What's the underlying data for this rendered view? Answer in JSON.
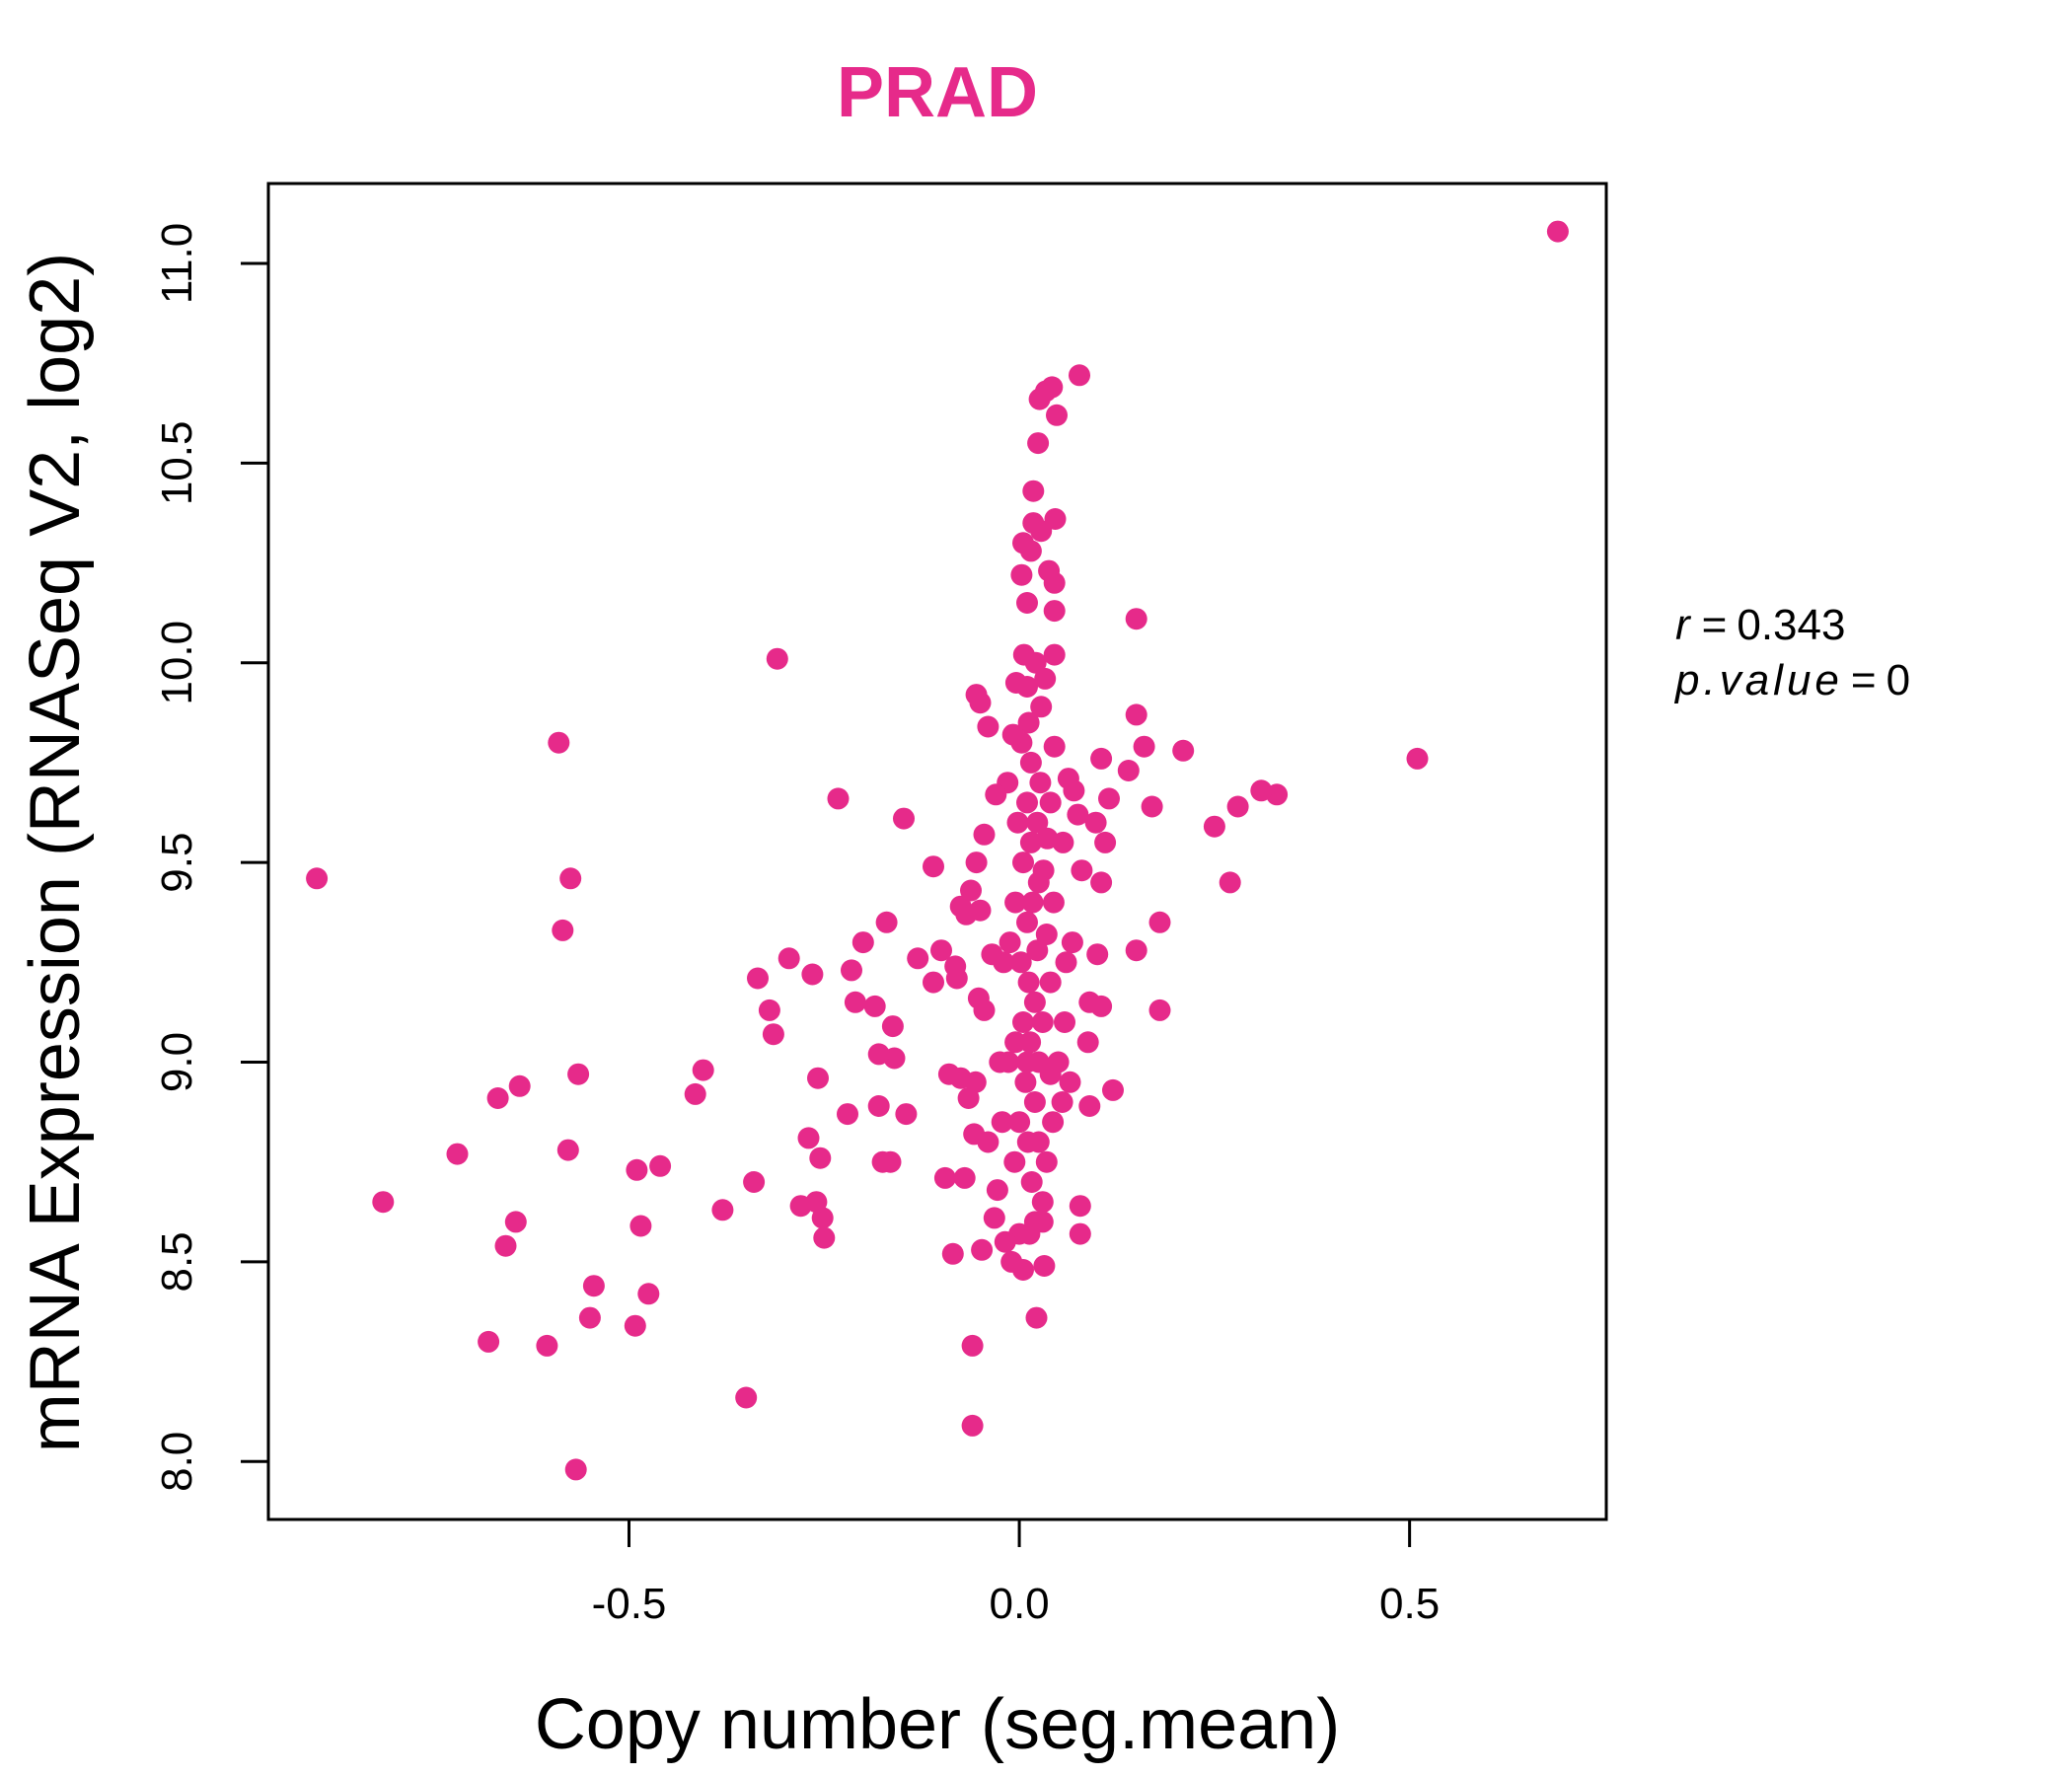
{
  "chart_data": {
    "type": "scatter",
    "title": "PRAD",
    "title_color": "#e62a8a",
    "point_color": "#e62a8a",
    "xlabel": "Copy number (seg.mean)",
    "ylabel": "mRNA Expression (RNASeq V2, log2)",
    "xlim": [
      -0.962,
      0.752
    ],
    "ylim": [
      7.855,
      11.2
    ],
    "x_ticks": [
      "-0.5",
      "0.0",
      "0.5"
    ],
    "x_tick_values": [
      -0.5,
      0.0,
      0.5
    ],
    "y_ticks": [
      "8.0",
      "8.5",
      "9.0",
      "9.5",
      "10.0",
      "10.5",
      "11.0"
    ],
    "y_tick_values": [
      8.0,
      8.5,
      9.0,
      9.5,
      10.0,
      10.5,
      11.0
    ],
    "grid": false,
    "stats": {
      "r_label": "r",
      "r_value": "0.343",
      "p_label": "p.value",
      "p_value": "0"
    },
    "points": [
      [
        0.69,
        11.08
      ],
      [
        0.51,
        9.76
      ],
      [
        0.33,
        9.67
      ],
      [
        0.31,
        9.68
      ],
      [
        0.28,
        9.64
      ],
      [
        0.27,
        9.45
      ],
      [
        0.25,
        9.59
      ],
      [
        0.21,
        9.78
      ],
      [
        0.18,
        9.13
      ],
      [
        0.18,
        9.35
      ],
      [
        0.17,
        9.64
      ],
      [
        0.16,
        9.79
      ],
      [
        0.15,
        10.11
      ],
      [
        0.15,
        9.87
      ],
      [
        0.15,
        9.28
      ],
      [
        0.14,
        9.73
      ],
      [
        0.12,
        8.93
      ],
      [
        0.115,
        9.66
      ],
      [
        0.11,
        9.55
      ],
      [
        0.105,
        9.76
      ],
      [
        0.105,
        9.45
      ],
      [
        0.105,
        9.14
      ],
      [
        0.1,
        9.27
      ],
      [
        0.098,
        9.6
      ],
      [
        0.09,
        9.15
      ],
      [
        0.09,
        8.89
      ],
      [
        0.088,
        9.05
      ],
      [
        0.08,
        9.48
      ],
      [
        0.078,
        8.64
      ],
      [
        0.078,
        8.57
      ],
      [
        0.077,
        10.72
      ],
      [
        0.075,
        9.62
      ],
      [
        0.07,
        9.68
      ],
      [
        0.068,
        9.3
      ],
      [
        0.065,
        8.95
      ],
      [
        0.063,
        9.71
      ],
      [
        0.06,
        9.25
      ],
      [
        0.058,
        9.1
      ],
      [
        0.056,
        9.55
      ],
      [
        0.055,
        8.9
      ],
      [
        0.05,
        9.0
      ],
      [
        0.048,
        10.62
      ],
      [
        0.046,
        10.36
      ],
      [
        0.045,
        10.02
      ],
      [
        0.045,
        10.13
      ],
      [
        0.045,
        10.2
      ],
      [
        0.045,
        9.79
      ],
      [
        0.044,
        9.4
      ],
      [
        0.043,
        8.85
      ],
      [
        0.042,
        10.69
      ],
      [
        0.04,
        9.65
      ],
      [
        0.04,
        9.2
      ],
      [
        0.04,
        8.97
      ],
      [
        0.038,
        10.23
      ],
      [
        0.036,
        9.56
      ],
      [
        0.035,
        9.32
      ],
      [
        0.035,
        8.75
      ],
      [
        0.034,
        10.68
      ],
      [
        0.033,
        9.96
      ],
      [
        0.032,
        8.49
      ],
      [
        0.031,
        9.48
      ],
      [
        0.03,
        9.1
      ],
      [
        0.03,
        8.65
      ],
      [
        0.03,
        8.6
      ],
      [
        0.028,
        10.33
      ],
      [
        0.028,
        9.89
      ],
      [
        0.027,
        9.7
      ],
      [
        0.026,
        10.66
      ],
      [
        0.025,
        9.45
      ],
      [
        0.025,
        9.0
      ],
      [
        0.025,
        8.8
      ],
      [
        0.024,
        10.55
      ],
      [
        0.023,
        9.6
      ],
      [
        0.023,
        9.28
      ],
      [
        0.022,
        8.36
      ],
      [
        0.021,
        10.0
      ],
      [
        0.02,
        9.15
      ],
      [
        0.02,
        8.9
      ],
      [
        0.02,
        8.6
      ],
      [
        0.018,
        10.43
      ],
      [
        0.018,
        10.35
      ],
      [
        0.017,
        9.4
      ],
      [
        0.016,
        8.7
      ],
      [
        0.015,
        10.28
      ],
      [
        0.015,
        9.75
      ],
      [
        0.015,
        9.55
      ],
      [
        0.014,
        9.05
      ],
      [
        0.013,
        8.57
      ],
      [
        0.012,
        9.85
      ],
      [
        0.012,
        9.2
      ],
      [
        0.011,
        8.8
      ],
      [
        0.01,
        10.15
      ],
      [
        0.01,
        9.94
      ],
      [
        0.01,
        9.65
      ],
      [
        0.01,
        9.35
      ],
      [
        0.01,
        9.0
      ],
      [
        0.008,
        8.95
      ],
      [
        0.006,
        10.02
      ],
      [
        0.005,
        10.3
      ],
      [
        0.005,
        9.5
      ],
      [
        0.005,
        9.1
      ],
      [
        0.005,
        8.48
      ],
      [
        0.003,
        10.22
      ],
      [
        0.003,
        9.8
      ],
      [
        0.002,
        9.25
      ],
      [
        0.0,
        8.85
      ],
      [
        0.0,
        8.57
      ],
      [
        -0.002,
        9.6
      ],
      [
        -0.004,
        9.95
      ],
      [
        -0.005,
        9.4
      ],
      [
        -0.005,
        9.05
      ],
      [
        -0.006,
        8.75
      ],
      [
        -0.008,
        9.82
      ],
      [
        -0.01,
        8.5
      ],
      [
        -0.012,
        9.3
      ],
      [
        -0.014,
        9.0
      ],
      [
        -0.015,
        9.7
      ],
      [
        -0.018,
        8.55
      ],
      [
        -0.02,
        9.25
      ],
      [
        -0.022,
        8.85
      ],
      [
        -0.025,
        9.0
      ],
      [
        -0.028,
        8.68
      ],
      [
        -0.03,
        9.67
      ],
      [
        -0.032,
        8.61
      ],
      [
        -0.035,
        9.27
      ],
      [
        -0.04,
        9.84
      ],
      [
        -0.04,
        8.8
      ],
      [
        -0.045,
        9.57
      ],
      [
        -0.045,
        9.13
      ],
      [
        -0.048,
        8.53
      ],
      [
        -0.05,
        9.9
      ],
      [
        -0.05,
        9.38
      ],
      [
        -0.052,
        9.16
      ],
      [
        -0.055,
        9.92
      ],
      [
        -0.055,
        9.5
      ],
      [
        -0.056,
        8.95
      ],
      [
        -0.058,
        8.82
      ],
      [
        -0.06,
        8.09
      ],
      [
        -0.06,
        8.29
      ],
      [
        -0.062,
        9.43
      ],
      [
        -0.065,
        8.91
      ],
      [
        -0.068,
        9.37
      ],
      [
        -0.07,
        8.71
      ],
      [
        -0.075,
        8.96
      ],
      [
        -0.075,
        9.39
      ],
      [
        -0.08,
        9.21
      ],
      [
        -0.082,
        9.24
      ],
      [
        -0.085,
        8.52
      ],
      [
        -0.09,
        8.97
      ],
      [
        -0.095,
        8.71
      ],
      [
        -0.1,
        9.28
      ],
      [
        -0.11,
        9.2
      ],
      [
        -0.11,
        9.49
      ],
      [
        -0.13,
        9.26
      ],
      [
        -0.145,
        8.87
      ],
      [
        -0.148,
        9.61
      ],
      [
        -0.16,
        9.01
      ],
      [
        -0.162,
        9.09
      ],
      [
        -0.165,
        8.75
      ],
      [
        -0.17,
        9.35
      ],
      [
        -0.175,
        8.75
      ],
      [
        -0.18,
        8.89
      ],
      [
        -0.18,
        9.02
      ],
      [
        -0.185,
        9.14
      ],
      [
        -0.2,
        9.3
      ],
      [
        -0.21,
        9.15
      ],
      [
        -0.215,
        9.23
      ],
      [
        -0.22,
        8.87
      ],
      [
        -0.232,
        9.66
      ],
      [
        -0.25,
        8.56
      ],
      [
        -0.252,
        8.61
      ],
      [
        -0.255,
        8.76
      ],
      [
        -0.26,
        8.65
      ],
      [
        -0.258,
        8.96
      ],
      [
        -0.265,
        9.22
      ],
      [
        -0.27,
        8.81
      ],
      [
        -0.28,
        8.64
      ],
      [
        -0.295,
        9.26
      ],
      [
        -0.31,
        10.01
      ],
      [
        -0.315,
        9.07
      ],
      [
        -0.32,
        9.13
      ],
      [
        -0.335,
        9.21
      ],
      [
        -0.34,
        8.7
      ],
      [
        -0.35,
        8.16
      ],
      [
        -0.38,
        8.63
      ],
      [
        -0.405,
        8.98
      ],
      [
        -0.415,
        8.92
      ],
      [
        -0.46,
        8.74
      ],
      [
        -0.475,
        8.42
      ],
      [
        -0.485,
        8.59
      ],
      [
        -0.49,
        8.73
      ],
      [
        -0.492,
        8.34
      ],
      [
        -0.545,
        8.44
      ],
      [
        -0.55,
        8.36
      ],
      [
        -0.565,
        8.97
      ],
      [
        -0.568,
        7.98
      ],
      [
        -0.575,
        9.46
      ],
      [
        -0.578,
        8.78
      ],
      [
        -0.585,
        9.33
      ],
      [
        -0.59,
        9.8
      ],
      [
        -0.605,
        8.29
      ],
      [
        -0.64,
        8.94
      ],
      [
        -0.645,
        8.6
      ],
      [
        -0.658,
        8.54
      ],
      [
        -0.668,
        8.91
      ],
      [
        -0.68,
        8.3
      ],
      [
        -0.72,
        8.77
      ],
      [
        -0.815,
        8.65
      ],
      [
        -0.9,
        9.46
      ]
    ]
  }
}
